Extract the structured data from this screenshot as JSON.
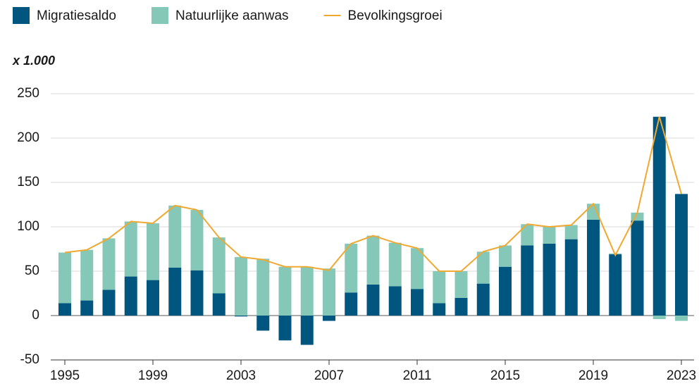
{
  "chart_data": {
    "type": "bar",
    "unit_label": "x 1.000",
    "categories": [
      "1995",
      null,
      null,
      null,
      "1999",
      null,
      null,
      null,
      "2003",
      null,
      null,
      null,
      "2007",
      null,
      null,
      null,
      "2011",
      null,
      null,
      null,
      "2015",
      null,
      null,
      null,
      "2019",
      null,
      null,
      null,
      "2023"
    ],
    "series": [
      {
        "name": "Migratiesaldo",
        "color": "#00567f",
        "values": [
          14,
          17,
          29,
          44,
          40,
          54,
          51,
          25,
          -1,
          -17,
          -28,
          -33,
          -6,
          26,
          35,
          33,
          30,
          14,
          20,
          36,
          55,
          79,
          81,
          86,
          108,
          69,
          107,
          224,
          137
        ]
      },
      {
        "name": "Natuurlijke aanwas",
        "color": "#85c8b8",
        "values": [
          57,
          57,
          58,
          62,
          64,
          70,
          68,
          63,
          66,
          64,
          55,
          55,
          53,
          55,
          55,
          49,
          46,
          36,
          30,
          36,
          24,
          24,
          19,
          16,
          18,
          1,
          9,
          -4,
          -6
        ]
      },
      {
        "name": "Bevolkingsgroei",
        "color": "#f0a830",
        "type": "line",
        "values": [
          71,
          74,
          87,
          106,
          104,
          124,
          119,
          88,
          66,
          63,
          55,
          55,
          51,
          81,
          90,
          82,
          76,
          50,
          50,
          72,
          79,
          103,
          100,
          102,
          126,
          68,
          116,
          224,
          137
        ]
      }
    ],
    "stacked": true,
    "ylim": [
      -50,
      250
    ],
    "yticks": [
      -50,
      0,
      50,
      100,
      150,
      200,
      250
    ],
    "grid": true
  }
}
